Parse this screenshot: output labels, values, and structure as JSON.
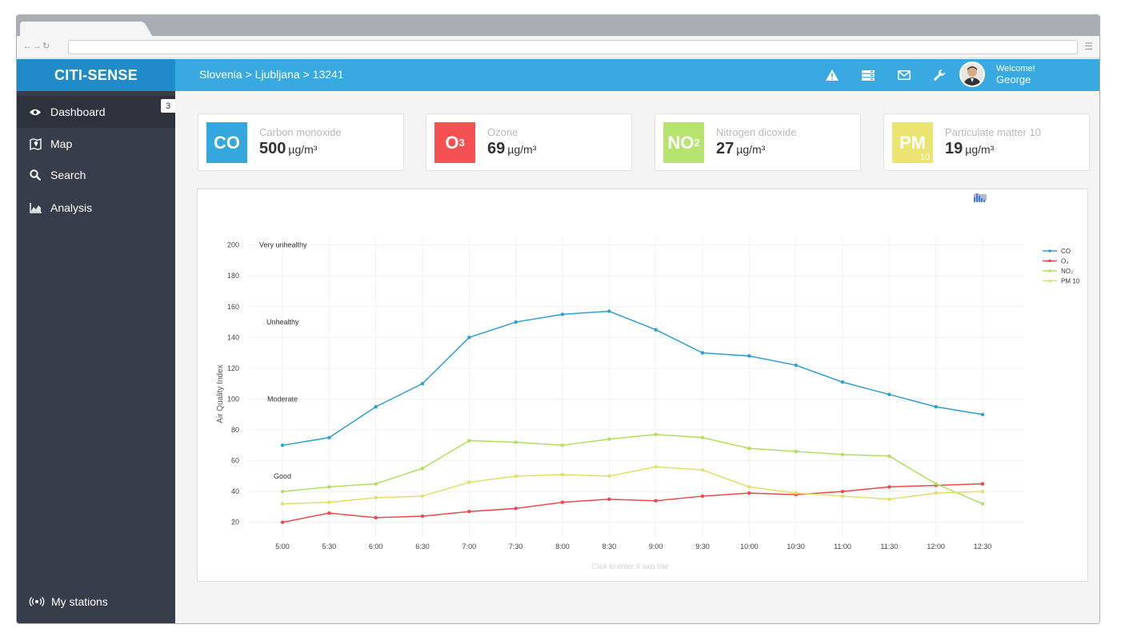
{
  "brand": "CITI-SENSE",
  "breadcrumb": "Slovenia > Ljubljana > 13241",
  "topbar_icons": [
    "warning-icon",
    "server-icon",
    "mail-icon",
    "wrench-icon"
  ],
  "user": {
    "welcome": "Welcome!",
    "name": "George"
  },
  "sidebar": {
    "items": [
      {
        "label": "Dashboard",
        "icon": "eye-icon",
        "badge": "3",
        "active": true
      },
      {
        "label": "Map",
        "icon": "map-icon"
      },
      {
        "label": "Search",
        "icon": "search-icon"
      },
      {
        "label": "Analysis",
        "icon": "chart-icon"
      }
    ],
    "bottom_item": {
      "label": "My stations",
      "icon": "broadcast-icon"
    }
  },
  "cards": [
    {
      "symbol": "CO",
      "name": "Carbon monoxide",
      "value": "500",
      "unit": "µg/m³",
      "color": "#33a7de"
    },
    {
      "symbol": "O",
      "symbol_sub": "3",
      "name": "Ozone",
      "value": "69",
      "unit": "µg/m³",
      "color": "#f55153"
    },
    {
      "symbol": "NO",
      "symbol_sub": "2",
      "name": "Nitrogen dicoxide",
      "value": "27",
      "unit": "µg/m³",
      "color": "#b6e46e"
    },
    {
      "symbol": "PM",
      "symbol_sub": "10",
      "name": "Particulate matter 10",
      "value": "19",
      "unit": "µg/m³",
      "color": "#ebe470"
    }
  ],
  "chart_data": {
    "type": "line",
    "categories": [
      "5:00",
      "5:30",
      "6:00",
      "6:30",
      "7:00",
      "7:30",
      "8:00",
      "8:30",
      "9:00",
      "9:30",
      "10:00",
      "10:30",
      "11:00",
      "11:30",
      "12:00",
      "12:30"
    ],
    "series": [
      {
        "name": "CO",
        "color": "#2b9fd6",
        "values": [
          70,
          75,
          95,
          110,
          140,
          150,
          155,
          157,
          145,
          130,
          128,
          122,
          111,
          103,
          95,
          90
        ]
      },
      {
        "name": "O₃",
        "color": "#f2474a",
        "values": [
          20,
          26,
          23,
          24,
          27,
          29,
          33,
          35,
          34,
          37,
          39,
          38,
          40,
          43,
          44,
          45
        ]
      },
      {
        "name": "NO₂",
        "color": "#aee05c",
        "values": [
          40,
          43,
          45,
          55,
          73,
          72,
          70,
          74,
          77,
          75,
          68,
          66,
          64,
          63,
          45,
          32
        ]
      },
      {
        "name": "PM 10",
        "color": "#e2df64",
        "values": [
          32,
          33,
          36,
          37,
          46,
          50,
          51,
          50,
          56,
          54,
          43,
          39,
          37,
          35,
          39,
          40
        ]
      }
    ],
    "ylabel": "Air Quality Index",
    "xlabel": "Click to enter X axis title",
    "yticks": [
      20,
      40,
      60,
      80,
      100,
      120,
      140,
      160,
      180,
      200
    ],
    "ylim": [
      10,
      205
    ],
    "grid": true,
    "legend": "top-right",
    "annotations": [
      {
        "text": "Very unhealthy",
        "y": 200
      },
      {
        "text": "Unhealthy",
        "y": 150
      },
      {
        "text": "Moderate",
        "y": 100
      },
      {
        "text": "Good",
        "y": 50
      }
    ]
  }
}
